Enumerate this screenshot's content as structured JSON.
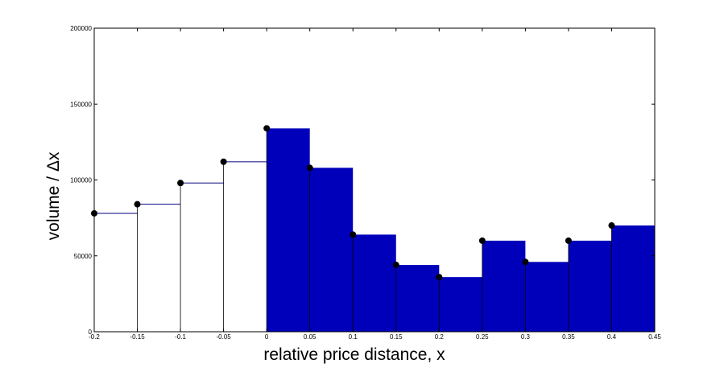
{
  "chart_data": {
    "type": "bar",
    "xlabel": "relative price distance, x",
    "ylabel": "volume / Δx",
    "xlim": [
      -0.2,
      0.45
    ],
    "ylim": [
      0,
      200000
    ],
    "grid": false,
    "x_ticks": [
      "-0.2",
      "-0.15",
      "-0.1",
      "-0.05",
      "0",
      "0.05",
      "0.1",
      "0.15",
      "0.2",
      "0.25",
      "0.3",
      "0.35",
      "0.4",
      "0.45"
    ],
    "y_ticks": [
      "0",
      "50000",
      "100000",
      "150000",
      "200000"
    ],
    "bin_width": 0.05,
    "series": [
      {
        "style": "outline",
        "color": "#000080",
        "bin_starts": [
          -0.2,
          -0.15,
          -0.1,
          -0.05
        ],
        "values": [
          78000,
          84000,
          98000,
          112000
        ]
      },
      {
        "style": "filled",
        "color": "#0000bb",
        "bin_starts": [
          0,
          0.05,
          0.1,
          0.15,
          0.2,
          0.25,
          0.3,
          0.35,
          0.4
        ],
        "values": [
          134000,
          108000,
          64000,
          44000,
          36000,
          60000,
          46000,
          60000,
          70000
        ]
      }
    ],
    "points": {
      "color": "#000000",
      "x": [
        -0.2,
        -0.15,
        -0.1,
        -0.05,
        0,
        0.05,
        0.1,
        0.15,
        0.2,
        0.25,
        0.3,
        0.35,
        0.4
      ],
      "y": [
        78000,
        84000,
        98000,
        112000,
        134000,
        108000,
        64000,
        44000,
        36000,
        60000,
        46000,
        60000,
        70000
      ]
    }
  }
}
